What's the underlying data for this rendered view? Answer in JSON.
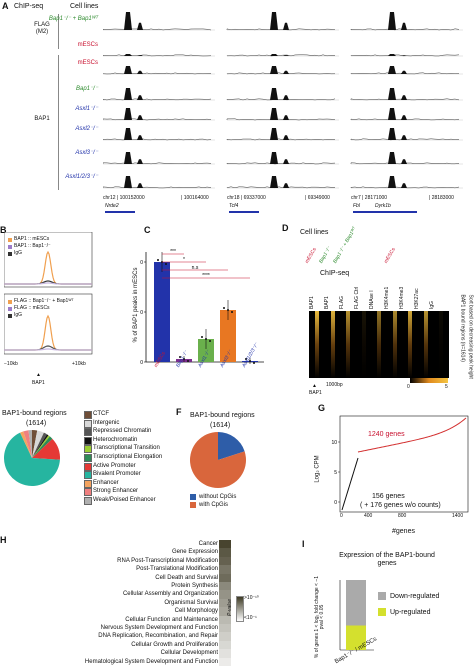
{
  "panelA": {
    "chipseq_label": "ChIP-seq",
    "cell_lines_label": "Cell lines",
    "flag_group": "FLAG\n(M2)",
    "bap1_group": "BAP1",
    "flag_rows": [
      "Bap1⁻/⁻ + Bap1ᵂᵀ",
      "mESCs"
    ],
    "bap1_rows": [
      "mESCs",
      "Bap1⁻/⁻",
      "Asxl1⁻/⁻",
      "Asxl2⁻/⁻",
      "Asxl3⁻/⁻",
      "Asxl1/2/3⁻/⁻"
    ],
    "loci": [
      {
        "coords": "chr12 | 100152000",
        "coords_end": "| 100164000",
        "gene": "Nrde2"
      },
      {
        "coords": "chr18 | 69337000",
        "coords_end": "| 69349000",
        "gene": "Tcf4"
      },
      {
        "coords": "chr7 | 28171000",
        "coords_end": "| 28183000",
        "gene": "Fbl",
        "gene2": "Dyrk1b"
      }
    ]
  },
  "panelB": {
    "letter": "B",
    "legend1": [
      "BAP1 :: mESCs",
      "BAP1 :: Bap1⁻/⁻",
      "IgG"
    ],
    "legend2": [
      "FLAG :: Bap1⁻/⁻ + Bap1ᵂᵀ",
      "FLAG :: mESCs",
      "IgG"
    ],
    "xticks": [
      "−10kb",
      "+10kb"
    ],
    "center": "BAP1"
  },
  "panelC": {
    "letter": "C",
    "ylabel": "% of BAP1 peaks in mESCs",
    "sig": [
      "***",
      "*",
      "n.s",
      "****"
    ],
    "chart_data": {
      "type": "bar",
      "categories": [
        "mESCs",
        "Bap1⁻/⁻",
        "Asxl1⁻/⁻",
        "Asxl3⁻/⁻",
        "Asxl1/2/3⁻/⁻"
      ],
      "values": [
        100,
        3,
        23,
        52,
        1
      ],
      "colors": [
        "#2233aa",
        "#7b2d8e",
        "#6ab04c",
        "#e87722",
        "#2233aa"
      ],
      "yticks": [
        0,
        50,
        100
      ],
      "ylim": [
        0,
        110
      ]
    }
  },
  "panelD": {
    "letter": "D",
    "cell_lines_label": "Cell lines",
    "chipseq_label": "ChIP-seq",
    "cell_cols": [
      "mESCs",
      "Bap1⁻/⁻",
      "Bap1⁻/⁻ + Bap1ᵂᵀ",
      "mESCs"
    ],
    "tracks": [
      "BAP1",
      "BAP1",
      "FLAG",
      "FLAG Ctrl",
      "DNAse I",
      "H3K4me1",
      "H3K4me3",
      "H3K27ac",
      "IgG"
    ],
    "side1": "BAP1 bound regions (n=1614)",
    "side2": "Sort based on decreasing peak height",
    "scale_label": "1000bp",
    "bottom": "BAP1",
    "cbar": [
      "0",
      "5"
    ]
  },
  "panelE": {
    "title": "BAP1-bound regions",
    "count": "(1614)",
    "legend": [
      "CTCF",
      "Intergenic",
      "Repressed Chromatin",
      "Heterochromatin",
      "Transcriptional Transition",
      "Transcriptional Elongation",
      "Active Promoter",
      "Bivalent Promoter",
      "Enhancer",
      "Strong Enhancer",
      "Weak/Poised Enhancer"
    ],
    "colors": [
      "#6f4e37",
      "#d8d8d8",
      "#555555",
      "#111111",
      "#9acd32",
      "#2e8b57",
      "#e53935",
      "#26b5a0",
      "#f4a460",
      "#f08080",
      "#b0b0b0"
    ],
    "slices": [
      3,
      4,
      2,
      1,
      1,
      2,
      13,
      67,
      2,
      3,
      2
    ]
  },
  "panelF": {
    "letter": "F",
    "title": "BAP1-bound regions",
    "count": "(1614)",
    "legend": [
      "without CpGis",
      "with CpGis"
    ],
    "colors": [
      "#2e5da8",
      "#d9663c"
    ],
    "slices": [
      20,
      80
    ]
  },
  "panelG": {
    "letter": "G",
    "ylabel": "Log₂ CPM",
    "xlabel": "#genes",
    "annot1": "1240 genes",
    "annot2": "156 genes",
    "annot3": "( + 176 genes w/o counts)",
    "xticks": [
      "0",
      "400",
      "800",
      "1400"
    ],
    "yticks": [
      "0",
      "5",
      "10"
    ]
  },
  "panelH": {
    "terms": [
      "Cancer",
      "Gene Expression",
      "RNA Post-Transcriptional Modification",
      "Post-Translational Modification",
      "Cell Death and Survival",
      "Protein Synthesis",
      "Cellular Assembly and Organization",
      "Organismal Survival",
      "Cell Morphology",
      "Cellular Function and Maintenance",
      "Nervous System Development and Function",
      "DNA Replication, Recombination, and Repair",
      "Cellular Growth and Proliferation",
      "Cellular Development",
      "Hematological System Development and Function"
    ],
    "shades": [
      0.95,
      0.85,
      0.8,
      0.7,
      0.75,
      0.6,
      0.55,
      0.5,
      0.45,
      0.35,
      0.3,
      0.25,
      0.2,
      0.15,
      0.1
    ],
    "legend_title": "P-value",
    "legend_hi": ">10⁻¹⁰",
    "legend_lo": "<10⁻¹"
  },
  "panelI": {
    "letter": "I",
    "title": "Expression of the BAP1-bound genes",
    "ylabel": "% of genes  1 < log₂ fold change < −1  pval < 0.05",
    "xlabel": "Bap1⁻/⁻ / mESCs",
    "legend": [
      "Down-regulated",
      "Up-regulated"
    ],
    "chart_data": {
      "type": "bar",
      "categories": [
        "Bap1⁻/⁻ / mESCs"
      ],
      "series": [
        {
          "name": "Down-regulated",
          "values": [
            65
          ],
          "color": "#aaaaaa"
        },
        {
          "name": "Up-regulated",
          "values": [
            35
          ],
          "color": "#d4e02e"
        }
      ],
      "yticks": [
        0,
        50,
        100
      ],
      "ylim": [
        0,
        100
      ]
    }
  }
}
